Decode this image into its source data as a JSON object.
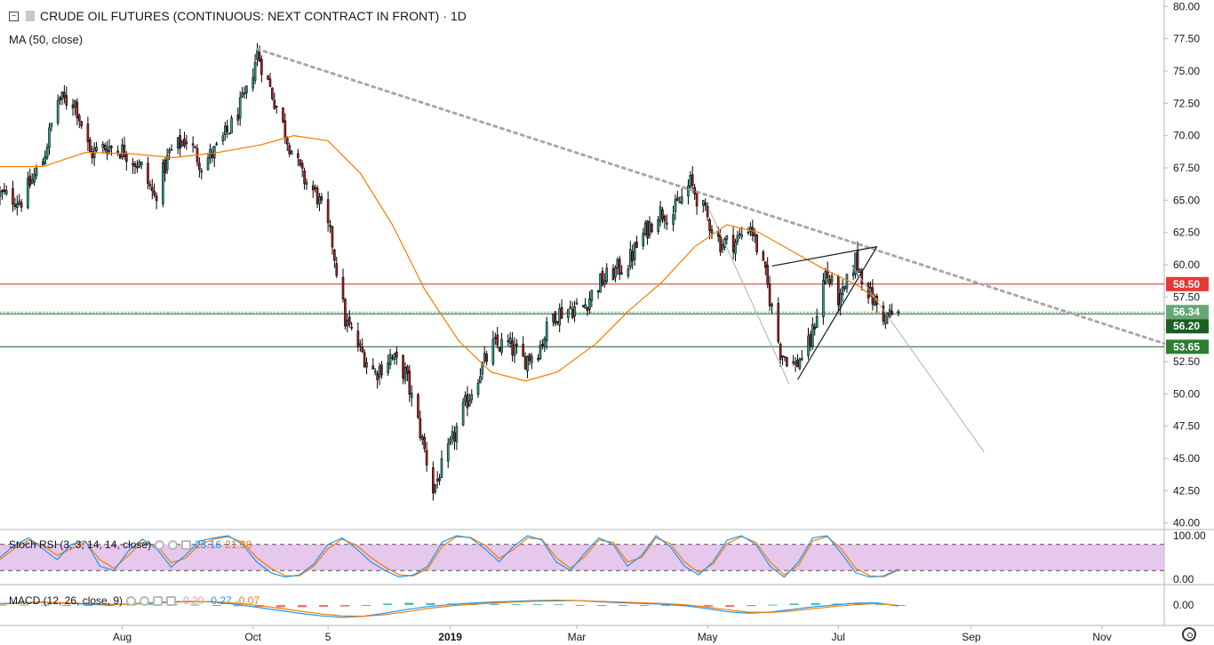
{
  "header": {
    "title": "CRUDE OIL FUTURES (CONTINUOUS: NEXT CONTRACT IN FRONT)",
    "separator": "·",
    "interval": "1D",
    "ma_label": "MA (50, close)"
  },
  "stoch_rsi": {
    "label": "Stoch RSI (3, 3, 14, 14, close)",
    "k_value": "23.16",
    "d_value": "21.38",
    "k_color": "#2196f3",
    "d_color": "#f57c00",
    "band_color": "#e1bee7",
    "ticks": [
      "100.00",
      "0.00"
    ]
  },
  "macd": {
    "label": "MACD (12, 26, close, 9)",
    "hist_value": "-0.20",
    "macd_value": "-0.27",
    "signal_value": "-0.07",
    "ticks": [
      "0.00"
    ]
  },
  "colors": {
    "up": "#26a69a",
    "down": "#b71c1c",
    "candle_wick": "#000000",
    "ma": "#f57c00",
    "resistance": "#d32f2f",
    "support_dark": "#1b5e20",
    "current": "#4caf50",
    "trend_dotted": "#a8a8a8"
  },
  "chart_data": {
    "type": "candlestick",
    "interval": "1D",
    "x_range": [
      "2018-06-05",
      "2019-11-30"
    ],
    "y_range": [
      39.5,
      80.5
    ],
    "x_tick_labels": [
      {
        "date": "2018-08-01",
        "label": "Aug"
      },
      {
        "date": "2018-10-01",
        "label": "Oct"
      },
      {
        "date": "2018-11-05",
        "label": "5"
      },
      {
        "date": "2019-01-01",
        "label": "2019"
      },
      {
        "date": "2019-03-01",
        "label": "Mar"
      },
      {
        "date": "2019-05-01",
        "label": "May"
      },
      {
        "date": "2019-07-01",
        "label": "Jul"
      },
      {
        "date": "2019-09-01",
        "label": "Sep"
      },
      {
        "date": "2019-11-01",
        "label": "Nov"
      }
    ],
    "y_ticks": [
      "80.00",
      "77.50",
      "75.00",
      "72.50",
      "70.00",
      "67.50",
      "65.00",
      "62.50",
      "60.00",
      "57.50",
      "55.00",
      "52.50",
      "50.00",
      "47.50",
      "45.00",
      "42.50",
      "40.00"
    ],
    "price_labels": [
      {
        "value": 58.5,
        "text": "58.50",
        "color": "#e53935"
      },
      {
        "value": 56.34,
        "text": "56.34",
        "color": "#66a874"
      },
      {
        "value": 56.2,
        "text": "56.20",
        "color": "#1b5e20"
      },
      {
        "value": 53.65,
        "text": "53.65",
        "color": "#2e7d32"
      }
    ],
    "horizontal_lines": [
      58.5,
      56.34,
      56.2,
      53.65
    ],
    "closes": [
      {
        "date": "2018-06-05",
        "close": 65.4
      },
      {
        "date": "2018-06-15",
        "close": 65.0
      },
      {
        "date": "2018-06-25",
        "close": 68.1
      },
      {
        "date": "2018-07-02",
        "close": 72.8
      },
      {
        "date": "2018-07-10",
        "close": 72.6
      },
      {
        "date": "2018-07-17",
        "close": 68.6
      },
      {
        "date": "2018-07-25",
        "close": 69.2
      },
      {
        "date": "2018-08-02",
        "close": 68.8
      },
      {
        "date": "2018-08-10",
        "close": 67.5
      },
      {
        "date": "2018-08-16",
        "close": 65.2
      },
      {
        "date": "2018-08-23",
        "close": 68.6
      },
      {
        "date": "2018-08-31",
        "close": 69.8
      },
      {
        "date": "2018-09-07",
        "close": 67.8
      },
      {
        "date": "2018-09-14",
        "close": 68.9
      },
      {
        "date": "2018-09-21",
        "close": 70.8
      },
      {
        "date": "2018-09-28",
        "close": 73.2
      },
      {
        "date": "2018-10-03",
        "close": 76.4
      },
      {
        "date": "2018-10-10",
        "close": 73.2
      },
      {
        "date": "2018-10-17",
        "close": 69.8
      },
      {
        "date": "2018-10-24",
        "close": 66.8
      },
      {
        "date": "2018-10-31",
        "close": 65.3
      },
      {
        "date": "2018-11-07",
        "close": 61.7
      },
      {
        "date": "2018-11-13",
        "close": 55.7
      },
      {
        "date": "2018-11-20",
        "close": 53.4
      },
      {
        "date": "2018-11-27",
        "close": 51.6
      },
      {
        "date": "2018-12-04",
        "close": 52.9
      },
      {
        "date": "2018-12-11",
        "close": 51.6
      },
      {
        "date": "2018-12-18",
        "close": 47.1
      },
      {
        "date": "2018-12-24",
        "close": 42.6
      },
      {
        "date": "2018-12-31",
        "close": 45.4
      },
      {
        "date": "2019-01-07",
        "close": 48.7
      },
      {
        "date": "2019-01-14",
        "close": 51.5
      },
      {
        "date": "2019-01-21",
        "close": 53.7
      },
      {
        "date": "2019-01-28",
        "close": 53.8
      },
      {
        "date": "2019-02-04",
        "close": 52.6
      },
      {
        "date": "2019-02-11",
        "close": 53.4
      },
      {
        "date": "2019-02-18",
        "close": 56.1
      },
      {
        "date": "2019-02-25",
        "close": 56.6
      },
      {
        "date": "2019-03-04",
        "close": 56.7
      },
      {
        "date": "2019-03-11",
        "close": 58.5
      },
      {
        "date": "2019-03-18",
        "close": 59.4
      },
      {
        "date": "2019-03-25",
        "close": 60.2
      },
      {
        "date": "2019-04-01",
        "close": 62.3
      },
      {
        "date": "2019-04-08",
        "close": 64.1
      },
      {
        "date": "2019-04-15",
        "close": 64.0
      },
      {
        "date": "2019-04-23",
        "close": 66.3
      },
      {
        "date": "2019-04-30",
        "close": 63.9
      },
      {
        "date": "2019-05-07",
        "close": 61.7
      },
      {
        "date": "2019-05-14",
        "close": 61.8
      },
      {
        "date": "2019-05-21",
        "close": 63.1
      },
      {
        "date": "2019-05-28",
        "close": 59.1
      },
      {
        "date": "2019-06-04",
        "close": 53.3
      },
      {
        "date": "2019-06-11",
        "close": 52.2
      },
      {
        "date": "2019-06-18",
        "close": 54.0
      },
      {
        "date": "2019-06-25",
        "close": 59.4
      },
      {
        "date": "2019-07-02",
        "close": 57.1
      },
      {
        "date": "2019-07-09",
        "close": 60.4
      },
      {
        "date": "2019-07-16",
        "close": 57.6
      },
      {
        "date": "2019-07-23",
        "close": 55.9
      },
      {
        "date": "2019-07-29",
        "close": 56.3
      }
    ],
    "ma50": [
      {
        "date": "2018-06-05",
        "value": 67.6
      },
      {
        "date": "2018-06-25",
        "value": 67.6
      },
      {
        "date": "2018-07-15",
        "value": 68.7
      },
      {
        "date": "2018-08-05",
        "value": 68.6
      },
      {
        "date": "2018-08-25",
        "value": 68.3
      },
      {
        "date": "2018-09-15",
        "value": 68.7
      },
      {
        "date": "2018-10-05",
        "value": 69.3
      },
      {
        "date": "2018-10-20",
        "value": 70.0
      },
      {
        "date": "2018-11-05",
        "value": 69.6
      },
      {
        "date": "2018-11-20",
        "value": 67.1
      },
      {
        "date": "2018-12-05",
        "value": 63.1
      },
      {
        "date": "2018-12-20",
        "value": 58.1
      },
      {
        "date": "2019-01-05",
        "value": 54.1
      },
      {
        "date": "2019-01-20",
        "value": 51.7
      },
      {
        "date": "2019-02-05",
        "value": 51.0
      },
      {
        "date": "2019-02-20",
        "value": 51.7
      },
      {
        "date": "2019-03-10",
        "value": 53.9
      },
      {
        "date": "2019-03-25",
        "value": 56.4
      },
      {
        "date": "2019-04-10",
        "value": 58.7
      },
      {
        "date": "2019-04-25",
        "value": 61.4
      },
      {
        "date": "2019-05-10",
        "value": 63.1
      },
      {
        "date": "2019-05-25",
        "value": 62.5
      },
      {
        "date": "2019-06-10",
        "value": 61.0
      },
      {
        "date": "2019-06-25",
        "value": 59.6
      },
      {
        "date": "2019-07-10",
        "value": 58.4
      },
      {
        "date": "2019-07-20",
        "value": 57.2
      }
    ],
    "dotted_trendline": [
      {
        "date": "2018-10-03",
        "value": 76.7
      },
      {
        "date": "2019-11-30",
        "value": 53.9
      }
    ],
    "wedge_upper": [
      {
        "date": "2019-05-31",
        "value": 59.9
      },
      {
        "date": "2019-07-19",
        "value": 61.4
      }
    ],
    "wedge_lower": [
      {
        "date": "2019-06-12",
        "value": 51.1
      },
      {
        "date": "2019-07-19",
        "value": 61.4
      }
    ],
    "projection_lines": [
      [
        {
          "date": "2019-05-02",
          "value": 64.2
        },
        {
          "date": "2019-06-08",
          "value": 50.8
        }
      ],
      [
        {
          "date": "2019-07-07",
          "value": 60.0
        },
        {
          "date": "2019-09-07",
          "value": 45.5
        }
      ]
    ],
    "stoch_rsi": {
      "range": [
        0,
        100
      ],
      "levels": [
        80,
        20
      ],
      "k": [
        50,
        78,
        95,
        70,
        45,
        80,
        88,
        30,
        20,
        65,
        92,
        70,
        28,
        55,
        88,
        95,
        100,
        80,
        40,
        15,
        5,
        10,
        35,
        80,
        95,
        70,
        40,
        20,
        5,
        10,
        30,
        85,
        100,
        95,
        70,
        40,
        75,
        100,
        90,
        40,
        20,
        60,
        95,
        80,
        30,
        55,
        100,
        75,
        30,
        10,
        40,
        90,
        100,
        80,
        30,
        5,
        40,
        95,
        100,
        60,
        15,
        5,
        8,
        23.16
      ],
      "d": [
        45,
        70,
        90,
        78,
        55,
        70,
        85,
        45,
        25,
        55,
        85,
        78,
        38,
        48,
        80,
        92,
        98,
        85,
        50,
        25,
        8,
        8,
        30,
        70,
        92,
        78,
        50,
        28,
        10,
        8,
        25,
        75,
        98,
        96,
        78,
        48,
        68,
        95,
        92,
        50,
        25,
        52,
        90,
        85,
        40,
        50,
        95,
        82,
        40,
        15,
        35,
        82,
        98,
        85,
        40,
        10,
        32,
        88,
        98,
        70,
        25,
        8,
        6,
        21.38
      ]
    },
    "macd": {
      "macd": [
        0.4,
        0.6,
        0.8,
        0.5,
        0.2,
        0.0,
        0.3,
        0.6,
        0.9,
        1.0,
        0.8,
        0.2,
        -0.6,
        -1.4,
        -2.2,
        -2.9,
        -3.3,
        -3.0,
        -2.2,
        -1.2,
        -0.4,
        0.1,
        0.5,
        0.8,
        1.0,
        1.2,
        1.3,
        1.2,
        0.9,
        0.6,
        0.4,
        0.2,
        -0.2,
        -0.9,
        -1.8,
        -2.2,
        -1.9,
        -1.2,
        -0.5,
        0.0,
        0.5,
        0.6,
        -0.27
      ],
      "signal": [
        0.3,
        0.5,
        0.7,
        0.6,
        0.4,
        0.2,
        0.2,
        0.4,
        0.7,
        0.9,
        0.9,
        0.5,
        -0.1,
        -0.8,
        -1.6,
        -2.4,
        -2.9,
        -3.0,
        -2.6,
        -1.8,
        -0.9,
        -0.3,
        0.2,
        0.5,
        0.8,
        1.0,
        1.1,
        1.2,
        1.0,
        0.8,
        0.6,
        0.4,
        0.1,
        -0.5,
        -1.3,
        -1.9,
        -2.0,
        -1.6,
        -1.0,
        -0.4,
        0.1,
        0.4,
        -0.07
      ]
    }
  }
}
